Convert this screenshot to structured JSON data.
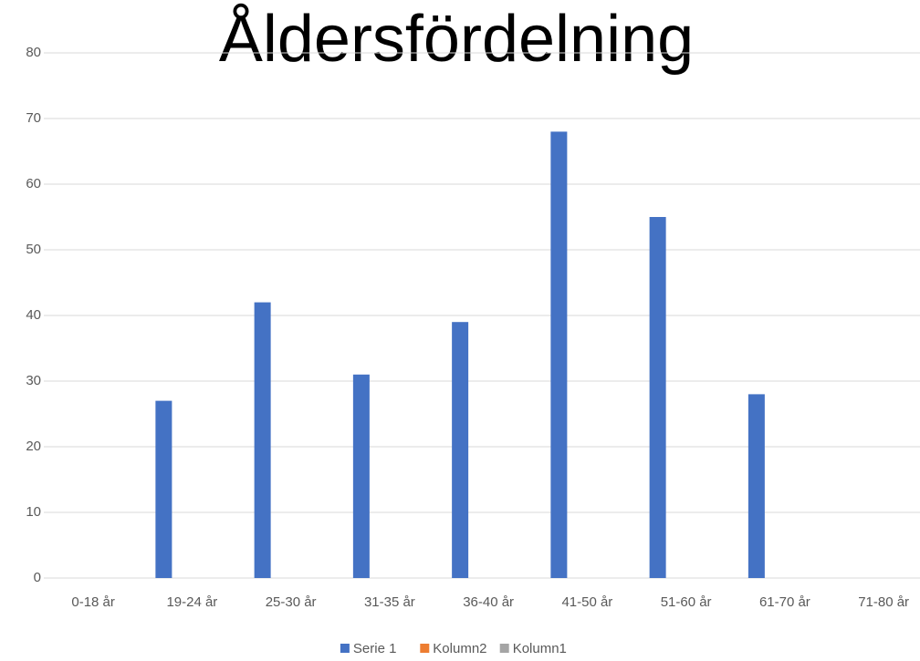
{
  "chart_data": {
    "type": "bar",
    "title": "Åldersfördelning",
    "categories": [
      "0-18 år",
      "19-24 år",
      "25-30 år",
      "31-35 år",
      "36-40 år",
      "41-50 år",
      "51-60 år",
      "61-70 år",
      "71-80 år"
    ],
    "series": [
      {
        "name": "Serie 1",
        "color": "#4472c4",
        "values": [
          null,
          27,
          42,
          31,
          39,
          68,
          55,
          28,
          null
        ]
      },
      {
        "name": "Kolumn2",
        "color": "#ed7d31",
        "values": [
          null,
          null,
          null,
          null,
          null,
          null,
          null,
          null,
          null
        ]
      },
      {
        "name": "Kolumn1",
        "color": "#a5a5a5",
        "values": [
          null,
          null,
          null,
          null,
          null,
          null,
          null,
          null,
          null
        ]
      }
    ],
    "ylim": [
      0,
      80
    ],
    "yticks": [
      0,
      10,
      20,
      30,
      40,
      50,
      60,
      70,
      80
    ],
    "grid": true,
    "legend": "bottom"
  }
}
